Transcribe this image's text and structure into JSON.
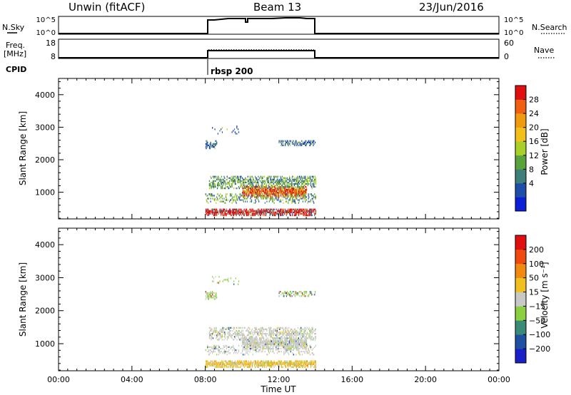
{
  "header": {
    "site": "Unwin (fitACF)",
    "beam": "Beam 13",
    "date": "23/Jun/2016"
  },
  "side_labels": {
    "nsky": "N.Sky",
    "freq_line1": "Freq.",
    "freq_line2": "[MHz]",
    "cpid": "CPID",
    "nsearch": "N.Search",
    "nave": "Nave"
  },
  "small_panels": {
    "nsky_ticks_left": [
      "10^5",
      "10^0"
    ],
    "nsky_ticks_right": [
      "10^5",
      "10^0"
    ],
    "freq_ticks_left": [
      "18",
      "8"
    ],
    "freq_ticks_right": [
      "60",
      "0"
    ],
    "cpid_label": "rbsp 200"
  },
  "chart_data": [
    {
      "type": "heatmap",
      "name": "power",
      "ylabel": "Slant Range [km]",
      "ylim": [
        180,
        4500
      ],
      "yticks": [
        "4000",
        "3000",
        "2000",
        "1000"
      ],
      "xlim": [
        0,
        24
      ],
      "colorbar_label": "Power [dB]",
      "colorbar_ticks": [
        "28",
        "24",
        "20",
        "16",
        "12",
        "8",
        "4"
      ],
      "colorbar_colors": [
        "#0a1fd6",
        "#1f4ea8",
        "#3f7f7a",
        "#5aa33c",
        "#a8d028",
        "#f2c018",
        "#f09a10",
        "#f06010",
        "#e01010"
      ],
      "data_time_range": [
        8,
        14
      ]
    },
    {
      "type": "heatmap",
      "name": "velocity",
      "ylabel": "Slant Range [km]",
      "ylim": [
        180,
        4500
      ],
      "yticks": [
        "4000",
        "3000",
        "2000",
        "1000"
      ],
      "xlim": [
        0,
        24
      ],
      "xticks": [
        "00:00",
        "04:00",
        "08:00",
        "12:00",
        "16:00",
        "20:00",
        "00:00"
      ],
      "xlabel": "Time UT",
      "colorbar_label": "Velocity [m s⁻¹]",
      "colorbar_ticks": [
        "200",
        "100",
        "50",
        "15",
        "−15",
        "−50",
        "−100",
        "−200"
      ],
      "colorbar_colors": [
        "#1a20c8",
        "#2050a0",
        "#3a8a78",
        "#8ad040",
        "#c8c8c4",
        "#f0c020",
        "#f08a10",
        "#f04a10",
        "#e01010"
      ],
      "data_time_range": [
        8,
        14
      ]
    }
  ]
}
